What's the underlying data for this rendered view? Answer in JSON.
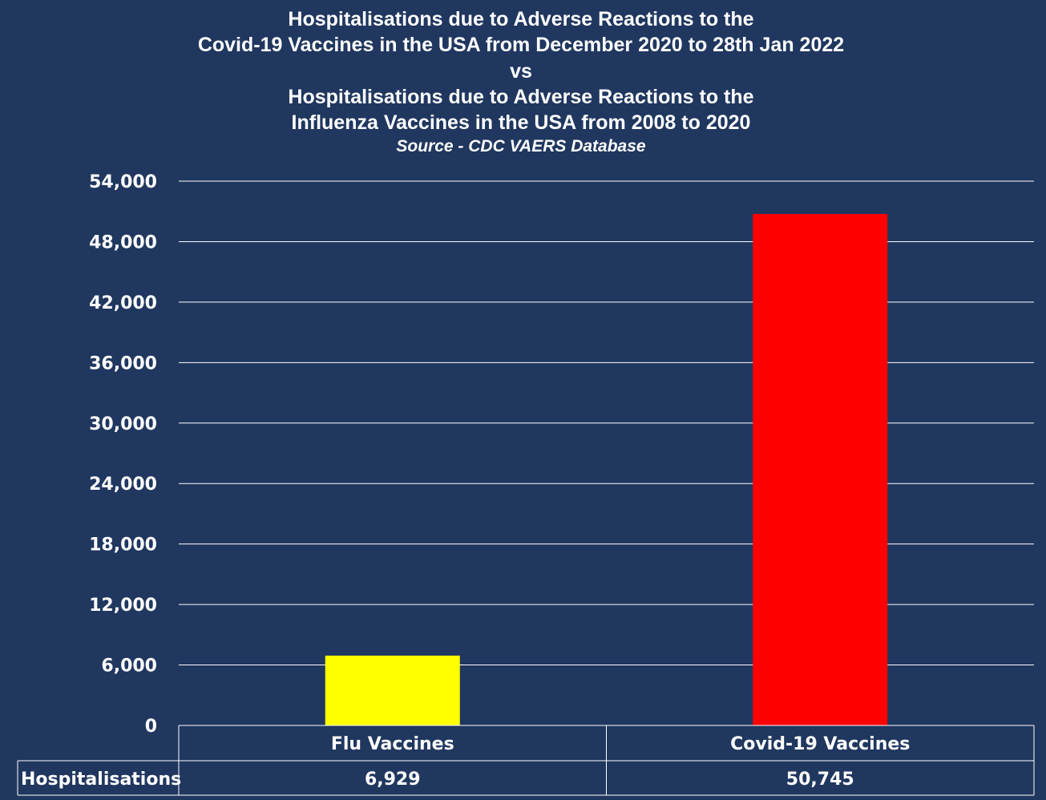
{
  "chart_data": {
    "type": "bar",
    "title_lines": [
      "Hospitalisations due to Adverse Reactions to the",
      "Covid-19 Vaccines in the USA from December 2020 to 28th Jan 2022",
      "vs",
      "Hospitalisations due to Adverse Reactions to the",
      "Influenza Vaccines in the USA from 2008 to 2020"
    ],
    "subtitle": "Source - CDC VAERS Database",
    "categories": [
      "Flu Vaccines",
      "Covid-19 Vaccines"
    ],
    "series": [
      {
        "name": "Hospitalisations",
        "values": [
          6929,
          50745
        ],
        "value_labels": [
          "6,929",
          "50,745"
        ],
        "colors": [
          "#ffff00",
          "#ff0000"
        ]
      }
    ],
    "ylim": [
      0,
      54000
    ],
    "yticks": [
      0,
      6000,
      12000,
      18000,
      24000,
      30000,
      36000,
      42000,
      48000,
      54000
    ],
    "ytick_labels": [
      "0",
      "6,000",
      "12,000",
      "18,000",
      "24,000",
      "30,000",
      "36,000",
      "42,000",
      "48,000",
      "54,000"
    ],
    "grid": true,
    "data_table": true,
    "background": "#20375f",
    "gridline_color": "#ffffff"
  }
}
